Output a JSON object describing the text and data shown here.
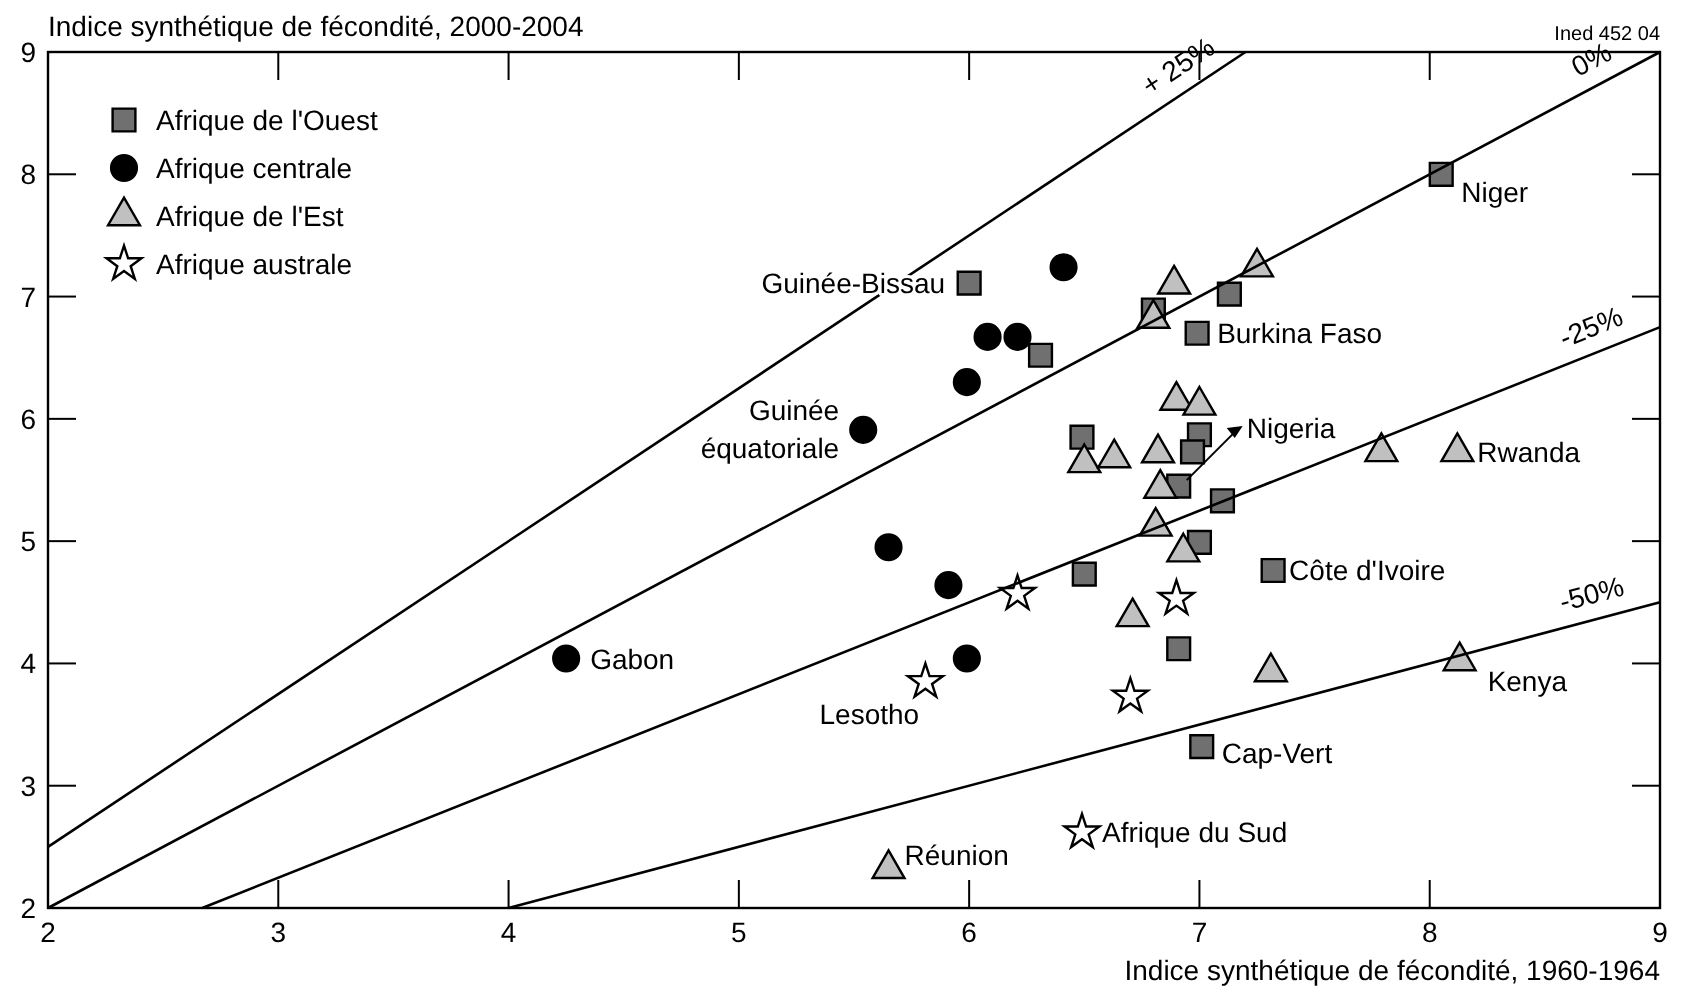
{
  "chart_data": {
    "type": "scatter",
    "ylabel": "Indice synthétique de fécondité, 2000-2004",
    "xlabel": "Indice synthétique de fécondité, 1960-1964",
    "xlim": [
      2,
      9
    ],
    "ylim": [
      2,
      9
    ],
    "xticks": [
      2,
      3,
      4,
      5,
      6,
      7,
      8,
      9
    ],
    "yticks": [
      2,
      3,
      4,
      5,
      6,
      7,
      8,
      9
    ],
    "grid": false,
    "legend": "top left",
    "series": [
      {
        "name": "Afrique de l'Ouest",
        "type": "scatter",
        "marker": "square",
        "color": "#707070",
        "x": [
          6.0,
          6.31,
          8.05,
          7.13,
          6.8,
          6.99,
          6.49,
          7.0,
          6.97,
          6.91,
          7.1,
          7.0,
          6.5,
          7.32,
          6.91,
          7.01
        ],
        "values": [
          7.11,
          6.52,
          8.0,
          7.02,
          6.89,
          6.7,
          5.85,
          5.87,
          5.73,
          5.45,
          5.33,
          4.99,
          4.73,
          4.76,
          4.12,
          3.32
        ]
      },
      {
        "name": "Afrique centrale",
        "type": "scatter",
        "marker": "circle",
        "color": "#000000",
        "x": [
          6.41,
          6.08,
          6.21,
          5.99,
          5.54,
          5.65,
          5.91,
          5.99,
          4.25
        ],
        "values": [
          7.24,
          6.67,
          6.67,
          6.3,
          5.91,
          4.95,
          4.64,
          4.04,
          4.04
        ]
      },
      {
        "name": "Afrique de l'Est",
        "type": "scatter",
        "marker": "triangle",
        "color": "#c0c0c0",
        "x": [
          7.25,
          6.89,
          6.8,
          6.9,
          7.0,
          6.5,
          6.63,
          6.82,
          6.83,
          7.79,
          8.12,
          6.81,
          6.93,
          6.71,
          7.31,
          8.13,
          5.65
        ],
        "values": [
          7.24,
          7.1,
          6.82,
          6.15,
          6.11,
          5.64,
          5.68,
          5.72,
          5.43,
          5.73,
          5.73,
          5.12,
          4.91,
          4.38,
          3.93,
          4.02,
          2.32
        ]
      },
      {
        "name": "Afrique australe",
        "type": "scatter",
        "marker": "star",
        "color": "#ffffff",
        "x": [
          6.21,
          6.9,
          6.7,
          5.81,
          6.49
        ],
        "values": [
          4.57,
          4.53,
          3.73,
          3.85,
          2.62
        ]
      },
      {
        "name": "+ 25%",
        "type": "line",
        "line_style": "solid",
        "color": "#000000",
        "x": [
          2,
          7.2
        ],
        "values": [
          2.5,
          9
        ]
      },
      {
        "name": "0%",
        "type": "line",
        "line_style": "solid",
        "color": "#000000",
        "x": [
          2,
          9
        ],
        "values": [
          2,
          9
        ]
      },
      {
        "name": "-25%",
        "type": "line",
        "line_style": "solid",
        "color": "#000000",
        "x": [
          2.67,
          9
        ],
        "values": [
          2,
          6.75
        ]
      },
      {
        "name": "-50%",
        "type": "line",
        "line_style": "solid",
        "color": "#000000",
        "x": [
          4,
          9
        ],
        "values": [
          2,
          4.5
        ]
      }
    ],
    "annotations": [
      {
        "text": "Niger",
        "x": 8.05,
        "y": 8.0
      },
      {
        "text": "Guinée-Bissau",
        "x": 6.0,
        "y": 7.11
      },
      {
        "text": "Burkina Faso",
        "x": 6.99,
        "y": 6.7
      },
      {
        "text": "Guinée équatoriale",
        "x": 5.54,
        "y": 5.91
      },
      {
        "text": "Nigeria",
        "x": 6.91,
        "y": 5.45
      },
      {
        "text": "Rwanda",
        "x": 8.12,
        "y": 5.73
      },
      {
        "text": "Côte d'Ivoire",
        "x": 7.32,
        "y": 4.76
      },
      {
        "text": "Gabon",
        "x": 4.25,
        "y": 4.04
      },
      {
        "text": "Kenya",
        "x": 8.13,
        "y": 4.02
      },
      {
        "text": "Lesotho",
        "x": 5.81,
        "y": 3.85
      },
      {
        "text": "Cap-Vert",
        "x": 7.01,
        "y": 3.32
      },
      {
        "text": "Afrique du Sud",
        "x": 6.49,
        "y": 2.62
      },
      {
        "text": "Réunion",
        "x": 5.65,
        "y": 2.32
      },
      "Ined 452 04"
    ]
  }
}
